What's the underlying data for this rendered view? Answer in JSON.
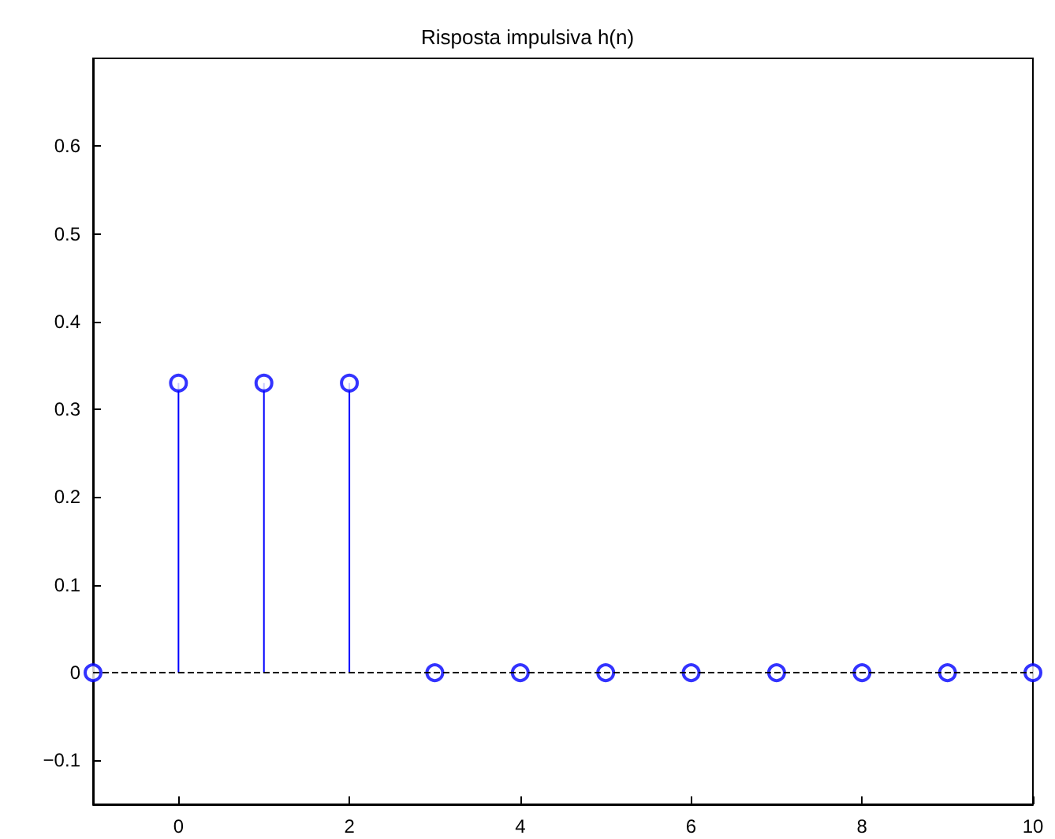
{
  "chart_data": {
    "type": "lollipop",
    "title": "Risposta impulsiva h(n)",
    "x": [
      -1,
      0,
      1,
      2,
      3,
      4,
      5,
      6,
      7,
      8,
      9,
      10
    ],
    "values": [
      0,
      0.33,
      0.33,
      0.33,
      0,
      0,
      0,
      0,
      0,
      0,
      0,
      0
    ],
    "color": "#0000ff",
    "marker": "circle",
    "xlim": [
      -1,
      10
    ],
    "xticks": [
      0,
      2,
      4,
      6,
      8,
      10
    ],
    "ylim": [
      -0.15,
      0.7
    ],
    "yticks": [
      {
        "value": -0.1,
        "label": "−0.1"
      },
      0,
      0.1,
      0.2,
      0.3,
      0.4,
      0.5,
      0.6
    ],
    "ref_lines": [
      {
        "axis": "y",
        "value": 0,
        "color": "#000000",
        "line_style": "dashed"
      }
    ]
  }
}
